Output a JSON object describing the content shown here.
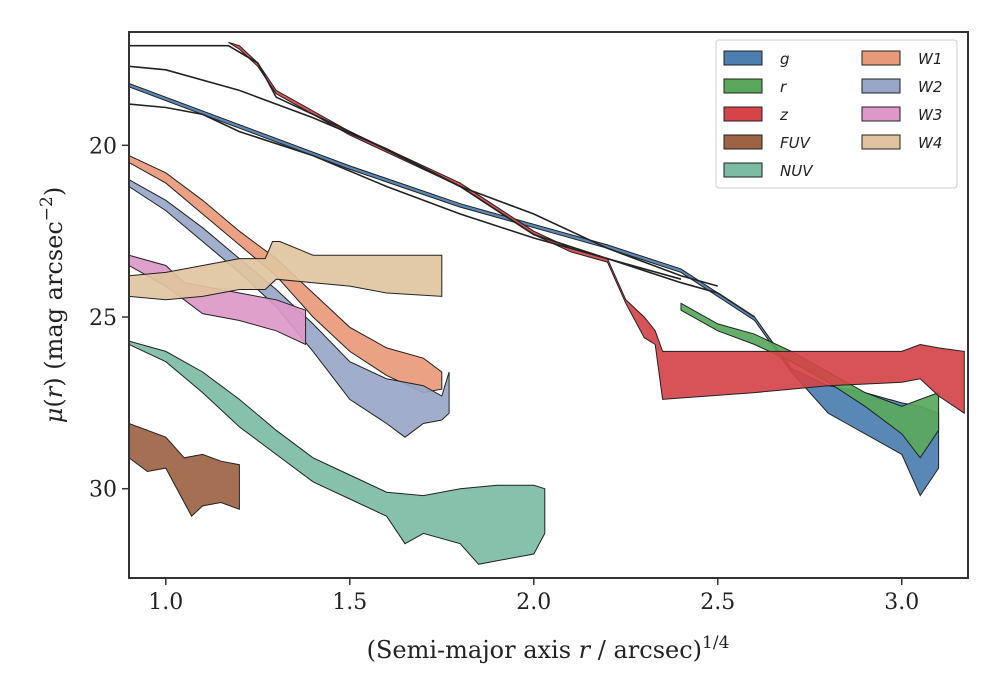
{
  "chart_data": {
    "type": "area",
    "xlabel": "(Semi-major axis r / arcsec)^{1/4}",
    "xlabel_parts": {
      "pre": "(Semi-major axis ",
      "var": "r",
      "post": " / arcsec)",
      "sup": "1/4"
    },
    "ylabel": "μ(r) (mag arcsec^{-2})",
    "ylabel_parts": {
      "sym": "μ",
      "open": "(",
      "var": "r",
      "mid": ") (mag arcsec",
      "sup": "−2",
      "close": ")"
    },
    "xlim": [
      0.9,
      3.18
    ],
    "ylim": [
      32.6,
      16.7
    ],
    "y_inverted": true,
    "grid": false,
    "legend_position": "top-right",
    "x_ticks": [
      1.0,
      1.5,
      2.0,
      2.5,
      3.0
    ],
    "x_tick_labels": [
      "1.0",
      "1.5",
      "2.0",
      "2.5",
      "3.0"
    ],
    "y_ticks": [
      20,
      25,
      30
    ],
    "y_tick_labels": [
      "20",
      "25",
      "30"
    ],
    "series": [
      {
        "name": "g",
        "color": "#4c7eb0",
        "upper": [
          [
            0.9,
            18.2
          ],
          [
            1.2,
            19.4
          ],
          [
            1.5,
            20.6
          ],
          [
            1.8,
            21.7
          ],
          [
            2.0,
            22.3
          ],
          [
            2.2,
            22.9
          ],
          [
            2.4,
            23.6
          ],
          [
            2.6,
            25.0
          ],
          [
            2.7,
            26.5
          ],
          [
            2.8,
            27.0
          ],
          [
            2.9,
            27.2
          ],
          [
            3.0,
            27.5
          ],
          [
            3.05,
            27.6
          ],
          [
            3.1,
            27.8
          ]
        ],
        "lower": [
          [
            3.1,
            29.4
          ],
          [
            3.05,
            30.2
          ],
          [
            3.0,
            29.0
          ],
          [
            2.95,
            28.7
          ],
          [
            2.9,
            28.4
          ],
          [
            2.85,
            28.1
          ],
          [
            2.8,
            27.8
          ],
          [
            2.7,
            26.6
          ],
          [
            2.6,
            25.1
          ],
          [
            2.4,
            23.7
          ],
          [
            2.2,
            23.0
          ],
          [
            2.0,
            22.4
          ],
          [
            1.8,
            21.8
          ],
          [
            1.5,
            20.7
          ],
          [
            1.2,
            19.5
          ],
          [
            0.9,
            18.3
          ]
        ]
      },
      {
        "name": "r",
        "color": "#59a85e",
        "upper": [
          [
            2.4,
            24.6
          ],
          [
            2.5,
            25.2
          ],
          [
            2.6,
            25.5
          ],
          [
            2.7,
            26.0
          ],
          [
            2.8,
            26.6
          ],
          [
            2.9,
            27.2
          ],
          [
            3.0,
            27.6
          ],
          [
            3.05,
            27.4
          ],
          [
            3.1,
            27.2
          ]
        ],
        "lower": [
          [
            3.1,
            28.3
          ],
          [
            3.05,
            29.1
          ],
          [
            3.0,
            28.4
          ],
          [
            2.9,
            27.6
          ],
          [
            2.8,
            26.9
          ],
          [
            2.7,
            26.3
          ],
          [
            2.6,
            25.8
          ],
          [
            2.5,
            25.4
          ],
          [
            2.4,
            24.8
          ]
        ]
      },
      {
        "name": "z",
        "color": "#d44449",
        "upper": [
          [
            1.17,
            17.0
          ],
          [
            1.2,
            17.1
          ],
          [
            1.25,
            17.6
          ],
          [
            1.3,
            18.4
          ],
          [
            1.5,
            19.6
          ],
          [
            1.8,
            21.1
          ],
          [
            2.0,
            22.5
          ],
          [
            2.1,
            23.0
          ],
          [
            2.2,
            23.3
          ],
          [
            2.25,
            24.5
          ],
          [
            2.3,
            25.0
          ],
          [
            2.33,
            25.4
          ],
          [
            2.35,
            26.0
          ],
          [
            2.6,
            26.0
          ],
          [
            2.8,
            26.0
          ],
          [
            3.0,
            26.0
          ],
          [
            3.05,
            25.8
          ],
          [
            3.1,
            25.9
          ],
          [
            3.17,
            26.0
          ]
        ],
        "lower": [
          [
            3.17,
            27.8
          ],
          [
            3.1,
            27.3
          ],
          [
            3.05,
            26.8
          ],
          [
            3.0,
            26.9
          ],
          [
            2.8,
            27.0
          ],
          [
            2.6,
            27.2
          ],
          [
            2.35,
            27.4
          ],
          [
            2.33,
            25.8
          ],
          [
            2.3,
            25.6
          ],
          [
            2.25,
            24.6
          ],
          [
            2.2,
            23.4
          ],
          [
            2.1,
            23.1
          ],
          [
            2.0,
            22.6
          ],
          [
            1.8,
            21.2
          ],
          [
            1.5,
            19.7
          ],
          [
            1.3,
            18.5
          ],
          [
            1.25,
            17.7
          ],
          [
            1.2,
            17.2
          ],
          [
            1.17,
            17.0
          ]
        ]
      },
      {
        "name": "FUV",
        "color": "#9c6344",
        "upper": [
          [
            0.9,
            28.1
          ],
          [
            1.0,
            28.5
          ],
          [
            1.05,
            29.1
          ],
          [
            1.1,
            29.0
          ],
          [
            1.15,
            29.2
          ],
          [
            1.2,
            29.3
          ]
        ],
        "lower": [
          [
            1.2,
            30.6
          ],
          [
            1.15,
            30.4
          ],
          [
            1.1,
            30.5
          ],
          [
            1.07,
            30.8
          ],
          [
            1.0,
            29.4
          ],
          [
            0.95,
            29.5
          ],
          [
            0.9,
            29.1
          ]
        ]
      },
      {
        "name": "NUV",
        "color": "#7cbca5",
        "upper": [
          [
            0.9,
            25.7
          ],
          [
            1.0,
            26.0
          ],
          [
            1.1,
            26.6
          ],
          [
            1.2,
            27.4
          ],
          [
            1.3,
            28.3
          ],
          [
            1.4,
            29.1
          ],
          [
            1.5,
            29.6
          ],
          [
            1.6,
            30.1
          ],
          [
            1.7,
            30.2
          ],
          [
            1.8,
            30.0
          ],
          [
            1.9,
            29.9
          ],
          [
            2.0,
            29.9
          ],
          [
            2.03,
            30.0
          ]
        ],
        "lower": [
          [
            2.03,
            31.3
          ],
          [
            2.0,
            31.9
          ],
          [
            1.9,
            32.1
          ],
          [
            1.85,
            32.2
          ],
          [
            1.8,
            31.6
          ],
          [
            1.7,
            31.3
          ],
          [
            1.65,
            31.6
          ],
          [
            1.6,
            30.8
          ],
          [
            1.5,
            30.3
          ],
          [
            1.4,
            29.8
          ],
          [
            1.3,
            29.0
          ],
          [
            1.2,
            28.2
          ],
          [
            1.1,
            27.2
          ],
          [
            1.0,
            26.3
          ],
          [
            0.9,
            25.8
          ]
        ]
      },
      {
        "name": "W1",
        "color": "#e8997a",
        "upper": [
          [
            0.9,
            20.3
          ],
          [
            1.0,
            20.8
          ],
          [
            1.1,
            21.6
          ],
          [
            1.2,
            22.5
          ],
          [
            1.3,
            23.3
          ],
          [
            1.4,
            24.3
          ],
          [
            1.5,
            25.3
          ],
          [
            1.6,
            25.9
          ],
          [
            1.7,
            26.2
          ],
          [
            1.75,
            26.6
          ]
        ],
        "lower": [
          [
            1.75,
            27.1
          ],
          [
            1.7,
            27.2
          ],
          [
            1.6,
            26.7
          ],
          [
            1.5,
            26.0
          ],
          [
            1.4,
            25.0
          ],
          [
            1.3,
            23.8
          ],
          [
            1.2,
            22.9
          ],
          [
            1.1,
            22.0
          ],
          [
            1.0,
            21.1
          ],
          [
            0.9,
            20.5
          ]
        ]
      },
      {
        "name": "W2",
        "color": "#98a6c7",
        "upper": [
          [
            0.9,
            21.0
          ],
          [
            1.0,
            21.6
          ],
          [
            1.1,
            22.4
          ],
          [
            1.2,
            23.3
          ],
          [
            1.3,
            24.2
          ],
          [
            1.4,
            25.2
          ],
          [
            1.5,
            26.3
          ],
          [
            1.6,
            26.8
          ],
          [
            1.7,
            27.0
          ],
          [
            1.75,
            27.3
          ],
          [
            1.77,
            26.6
          ]
        ],
        "lower": [
          [
            1.77,
            27.8
          ],
          [
            1.75,
            28.0
          ],
          [
            1.7,
            28.1
          ],
          [
            1.65,
            28.5
          ],
          [
            1.6,
            28.1
          ],
          [
            1.5,
            27.4
          ],
          [
            1.4,
            26.0
          ],
          [
            1.3,
            24.7
          ],
          [
            1.2,
            23.7
          ],
          [
            1.1,
            22.8
          ],
          [
            1.0,
            21.9
          ],
          [
            0.9,
            21.2
          ]
        ]
      },
      {
        "name": "W3",
        "color": "#dd98c8",
        "upper": [
          [
            0.9,
            23.2
          ],
          [
            1.0,
            23.5
          ],
          [
            1.05,
            24.0
          ],
          [
            1.1,
            24.1
          ],
          [
            1.2,
            24.3
          ],
          [
            1.3,
            24.5
          ],
          [
            1.38,
            24.8
          ]
        ],
        "lower": [
          [
            1.38,
            25.8
          ],
          [
            1.3,
            25.4
          ],
          [
            1.2,
            25.1
          ],
          [
            1.1,
            24.9
          ],
          [
            1.05,
            24.5
          ],
          [
            1.0,
            24.1
          ],
          [
            0.9,
            23.5
          ]
        ]
      },
      {
        "name": "W4",
        "color": "#e0c4a0",
        "upper": [
          [
            0.9,
            23.8
          ],
          [
            1.0,
            23.7
          ],
          [
            1.1,
            23.5
          ],
          [
            1.2,
            23.3
          ],
          [
            1.27,
            23.3
          ],
          [
            1.29,
            22.8
          ],
          [
            1.31,
            22.8
          ],
          [
            1.4,
            23.2
          ],
          [
            1.5,
            23.2
          ],
          [
            1.6,
            23.2
          ],
          [
            1.75,
            23.2
          ]
        ],
        "lower": [
          [
            1.75,
            24.4
          ],
          [
            1.6,
            24.3
          ],
          [
            1.5,
            24.1
          ],
          [
            1.4,
            24.0
          ],
          [
            1.3,
            23.9
          ],
          [
            1.27,
            24.2
          ],
          [
            1.2,
            24.2
          ],
          [
            1.1,
            24.4
          ],
          [
            1.0,
            24.5
          ],
          [
            0.9,
            24.4
          ]
        ]
      }
    ],
    "profile_lines": [
      {
        "color": "#222222",
        "points": [
          [
            0.9,
            17.1
          ],
          [
            1.17,
            17.1
          ],
          [
            1.25,
            17.6
          ],
          [
            1.3,
            18.6
          ],
          [
            1.5,
            19.6
          ],
          [
            1.8,
            21.2
          ],
          [
            2.0,
            22.6
          ],
          [
            2.2,
            23.3
          ],
          [
            2.4,
            24.0
          ],
          [
            2.5,
            24.3
          ],
          [
            2.6,
            25.0
          ]
        ]
      },
      {
        "color": "#222222",
        "points": [
          [
            0.9,
            17.7
          ],
          [
            1.0,
            17.8
          ],
          [
            1.2,
            18.4
          ],
          [
            1.4,
            19.2
          ],
          [
            1.6,
            20.1
          ],
          [
            1.8,
            21.2
          ],
          [
            2.0,
            22.0
          ],
          [
            2.2,
            23.0
          ],
          [
            2.4,
            23.8
          ],
          [
            2.5,
            24.1
          ]
        ]
      },
      {
        "color": "#222222",
        "points": [
          [
            0.9,
            18.8
          ],
          [
            1.0,
            18.9
          ],
          [
            1.1,
            19.1
          ],
          [
            1.2,
            19.6
          ],
          [
            1.4,
            20.3
          ],
          [
            1.6,
            21.2
          ],
          [
            1.8,
            22.0
          ],
          [
            2.0,
            22.7
          ],
          [
            2.2,
            23.3
          ],
          [
            2.4,
            23.9
          ]
        ]
      }
    ]
  }
}
